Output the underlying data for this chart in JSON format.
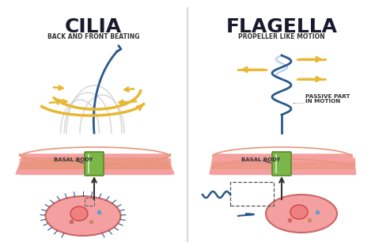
{
  "bg_color": "#ffffff",
  "divider_color": "#cccccc",
  "title_cilia": "CILIA",
  "title_flagella": "FLAGELLA",
  "subtitle_cilia": "BACK AND FRONT BEATING",
  "subtitle_flagella": "PROPELLER LIKE MOTION",
  "label_basal_cilia": "BASAL BODY",
  "label_basal_flagella": "BASAL BODY",
  "label_passive": "PASSIVE PART\nIN MOTION",
  "cell_color": "#f4a0a0",
  "cell_outline": "#cc6666",
  "membrane_top": "#f4a0a0",
  "membrane_stripe": "#e8967a",
  "basal_body_color": "#7ab648",
  "basal_body_outline": "#5a8a28",
  "cilia_line_color": "#2a5a8a",
  "flagella_line_color": "#2a5a8a",
  "flagella_helix_color": "#2a5a8a",
  "flagella_helix_passive_color": "#aaccee",
  "arrow_motion_color": "#e8b832",
  "arrow_label_color": "#333333",
  "title_color": "#1a1a2e",
  "subtitle_color": "#333333",
  "cilia_shadow_color": "#cccccc"
}
